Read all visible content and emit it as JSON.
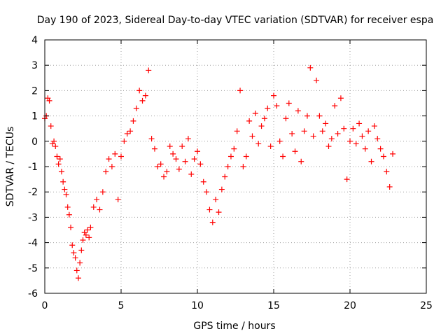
{
  "chart_data": {
    "type": "scatter",
    "title": "Day 190 of 2023, Sidereal Day-to-day VTEC variation (SDTVAR) for receiver espa",
    "xlabel": "GPS time / hours",
    "ylabel": "SDTVAR / TECUs",
    "xlim": [
      0,
      25
    ],
    "ylim": [
      -6,
      4
    ],
    "xticks": [
      0,
      5,
      10,
      15,
      20,
      25
    ],
    "yticks": [
      -6,
      -5,
      -4,
      -3,
      -2,
      -1,
      0,
      1,
      2,
      3,
      4
    ],
    "grid": true,
    "marker": "plus",
    "color": "#ff0000",
    "series": [
      {
        "name": "espa",
        "x": [
          0.0,
          0.1,
          0.2,
          0.3,
          0.4,
          0.5,
          0.6,
          0.7,
          0.8,
          0.9,
          1.0,
          1.1,
          1.2,
          1.3,
          1.4,
          1.5,
          1.6,
          1.7,
          1.8,
          1.9,
          2.0,
          2.1,
          2.2,
          2.3,
          2.4,
          2.5,
          2.6,
          2.7,
          2.8,
          2.9,
          3.0,
          3.2,
          3.4,
          3.6,
          3.8,
          4.0,
          4.2,
          4.4,
          4.6,
          4.8,
          5.0,
          5.2,
          5.4,
          5.6,
          5.8,
          6.0,
          6.2,
          6.4,
          6.6,
          6.8,
          7.0,
          7.2,
          7.4,
          7.6,
          7.8,
          8.0,
          8.2,
          8.4,
          8.6,
          8.8,
          9.0,
          9.2,
          9.4,
          9.6,
          9.8,
          10.0,
          10.2,
          10.4,
          10.6,
          10.8,
          11.0,
          11.2,
          11.4,
          11.6,
          11.8,
          12.0,
          12.2,
          12.4,
          12.6,
          12.8,
          13.0,
          13.2,
          13.4,
          13.6,
          13.8,
          14.0,
          14.2,
          14.4,
          14.6,
          14.8,
          15.0,
          15.2,
          15.4,
          15.6,
          15.8,
          16.0,
          16.2,
          16.4,
          16.6,
          16.8,
          17.0,
          17.2,
          17.4,
          17.6,
          17.8,
          18.0,
          18.2,
          18.4,
          18.6,
          18.8,
          19.0,
          19.2,
          19.4,
          19.6,
          19.8,
          20.0,
          20.2,
          20.4,
          20.6,
          20.8,
          21.0,
          21.2,
          21.4,
          21.6,
          21.8,
          22.0,
          22.2,
          22.4,
          22.6,
          22.8
        ],
        "y": [
          0.9,
          1.0,
          1.7,
          1.6,
          0.6,
          -0.1,
          0.0,
          -0.2,
          -0.6,
          -0.9,
          -0.7,
          -1.2,
          -1.6,
          -1.9,
          -2.1,
          -2.6,
          -2.9,
          -3.4,
          -4.1,
          -4.4,
          -4.6,
          -5.1,
          -5.4,
          -4.8,
          -4.3,
          -3.9,
          -3.6,
          -3.7,
          -3.5,
          -3.8,
          -3.4,
          -2.6,
          -2.3,
          -2.7,
          -2.0,
          -1.2,
          -0.7,
          -1.0,
          -0.5,
          -2.3,
          -0.6,
          0.0,
          0.3,
          0.4,
          0.8,
          1.3,
          2.0,
          1.6,
          1.8,
          2.8,
          0.1,
          -0.3,
          -1.0,
          -0.9,
          -1.4,
          -1.2,
          -0.2,
          -0.5,
          -0.7,
          -1.1,
          -0.2,
          -0.8,
          0.1,
          -1.3,
          -0.7,
          -0.4,
          -0.9,
          -1.6,
          -2.0,
          -2.7,
          -3.2,
          -2.3,
          -2.8,
          -1.9,
          -1.4,
          -1.0,
          -0.6,
          -0.3,
          0.4,
          2.0,
          -1.0,
          -0.6,
          0.8,
          0.2,
          1.1,
          -0.1,
          0.6,
          0.9,
          1.3,
          -0.2,
          1.8,
          1.4,
          0.0,
          -0.6,
          0.9,
          1.5,
          0.3,
          -0.4,
          1.2,
          -0.8,
          0.4,
          1.0,
          2.9,
          0.2,
          2.4,
          1.0,
          0.4,
          0.7,
          -0.2,
          0.1,
          1.4,
          0.3,
          1.7,
          0.5,
          -1.5,
          0.0,
          0.5,
          -0.1,
          0.7,
          0.2,
          -0.3,
          0.4,
          -0.8,
          0.6,
          0.1,
          -0.3,
          -0.6,
          -1.2,
          -1.8,
          -0.5
        ]
      }
    ]
  }
}
